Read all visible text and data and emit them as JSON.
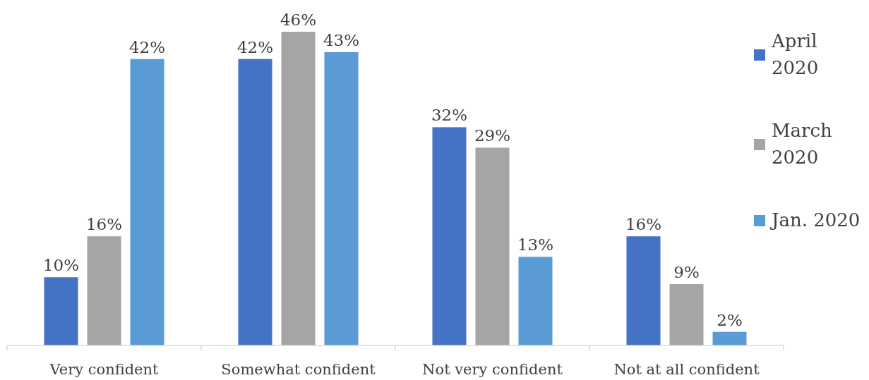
{
  "chart_data": {
    "type": "bar",
    "categories": [
      "Very confident",
      "Somewhat confident",
      "Not very confident",
      "Not at all confident"
    ],
    "series": [
      {
        "name": "April 2020",
        "color": "#4472c4",
        "values": [
          10,
          42,
          32,
          16
        ],
        "value_labels": [
          "10%",
          "42%",
          "32%",
          "16%"
        ]
      },
      {
        "name": "March 2020",
        "color": "#a5a5a5",
        "values": [
          16,
          46,
          29,
          9
        ],
        "value_labels": [
          "16%",
          "46%",
          "29%",
          "9%"
        ]
      },
      {
        "name": "Jan. 2020",
        "color": "#5b9bd5",
        "values": [
          42,
          43,
          13,
          2
        ],
        "value_labels": [
          "42%",
          "43%",
          "13%",
          "2%"
        ]
      }
    ],
    "legend": "right"
  }
}
